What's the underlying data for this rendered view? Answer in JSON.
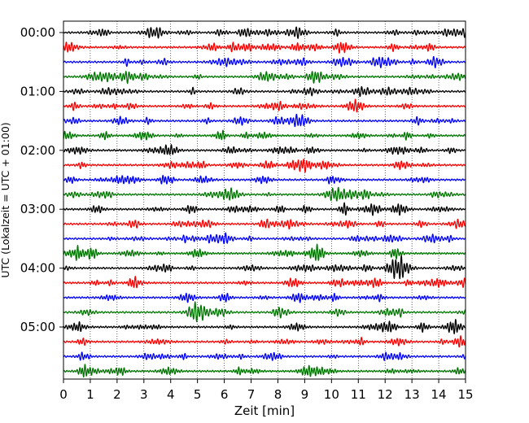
{
  "chart_data": {
    "type": "line",
    "title": "",
    "xlabel": "Zeit  [min]",
    "ylabel": "UTC (Lokalzeit = UTC + 01:00)",
    "xlim": [
      0,
      15
    ],
    "x_ticks": [
      "0",
      "1",
      "2",
      "3",
      "4",
      "5",
      "6",
      "7",
      "8",
      "9",
      "10",
      "11",
      "12",
      "13",
      "14",
      "15"
    ],
    "y_ticks": [
      "00:00",
      "01:00",
      "02:00",
      "03:00",
      "04:00",
      "05:00"
    ],
    "trace_minutes": 15,
    "trace_count": 24,
    "trace_colors": [
      "#000000",
      "#ff0000",
      "#0000ff",
      "#007700"
    ],
    "grid": "vertical-dotted",
    "legend": "none"
  }
}
